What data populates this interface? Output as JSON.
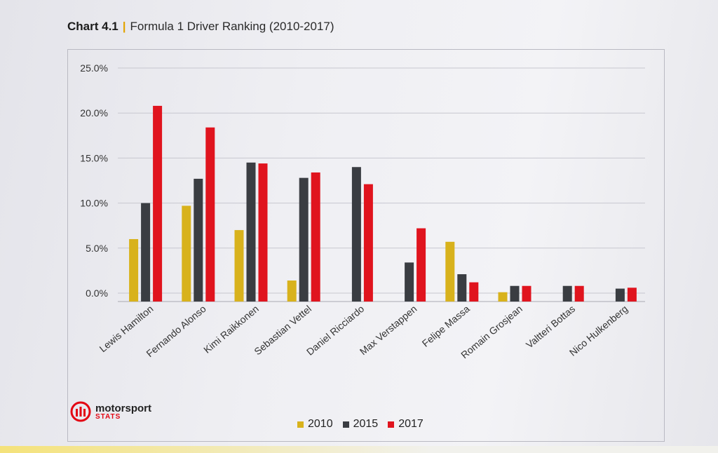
{
  "header": {
    "chart_number": "Chart 4.1",
    "separator": "|",
    "title": "Formula 1 Driver Ranking (2010-2017)"
  },
  "logo": {
    "name": "motorsport",
    "sub": "STATS",
    "icon": "motorsport-stats-logo-icon",
    "color": "#e30613"
  },
  "chart_data": {
    "type": "bar",
    "categories": [
      "Lewis Hamilton",
      "Fernando Alonso",
      "Kimi Raikkonen",
      "Sebastian Vettel",
      "Daniel Ricciardo",
      "Max Verstappen",
      "Felipe Massa",
      "Romain Grosjean",
      "Valtteri Bottas",
      "Nico Hulkenberg"
    ],
    "series": [
      {
        "name": "2010",
        "color": "#d8b21c",
        "values": [
          6.0,
          9.7,
          7.0,
          1.4,
          0.0,
          0.0,
          5.7,
          0.1,
          0.0,
          0.0
        ]
      },
      {
        "name": "2015",
        "color": "#3a3d42",
        "values": [
          10.0,
          12.7,
          14.5,
          12.8,
          14.0,
          3.4,
          2.1,
          0.8,
          0.8,
          0.5
        ]
      },
      {
        "name": "2017",
        "color": "#e0141e",
        "values": [
          20.8,
          18.4,
          14.4,
          13.4,
          12.1,
          7.2,
          1.2,
          0.8,
          0.8,
          0.6
        ]
      }
    ],
    "yticks": [
      "0.0%",
      "5.0%",
      "10.0%",
      "15.0%",
      "20.0%",
      "25.0%"
    ],
    "ylim": [
      0,
      25
    ],
    "grid": true,
    "legend": "bottom"
  }
}
